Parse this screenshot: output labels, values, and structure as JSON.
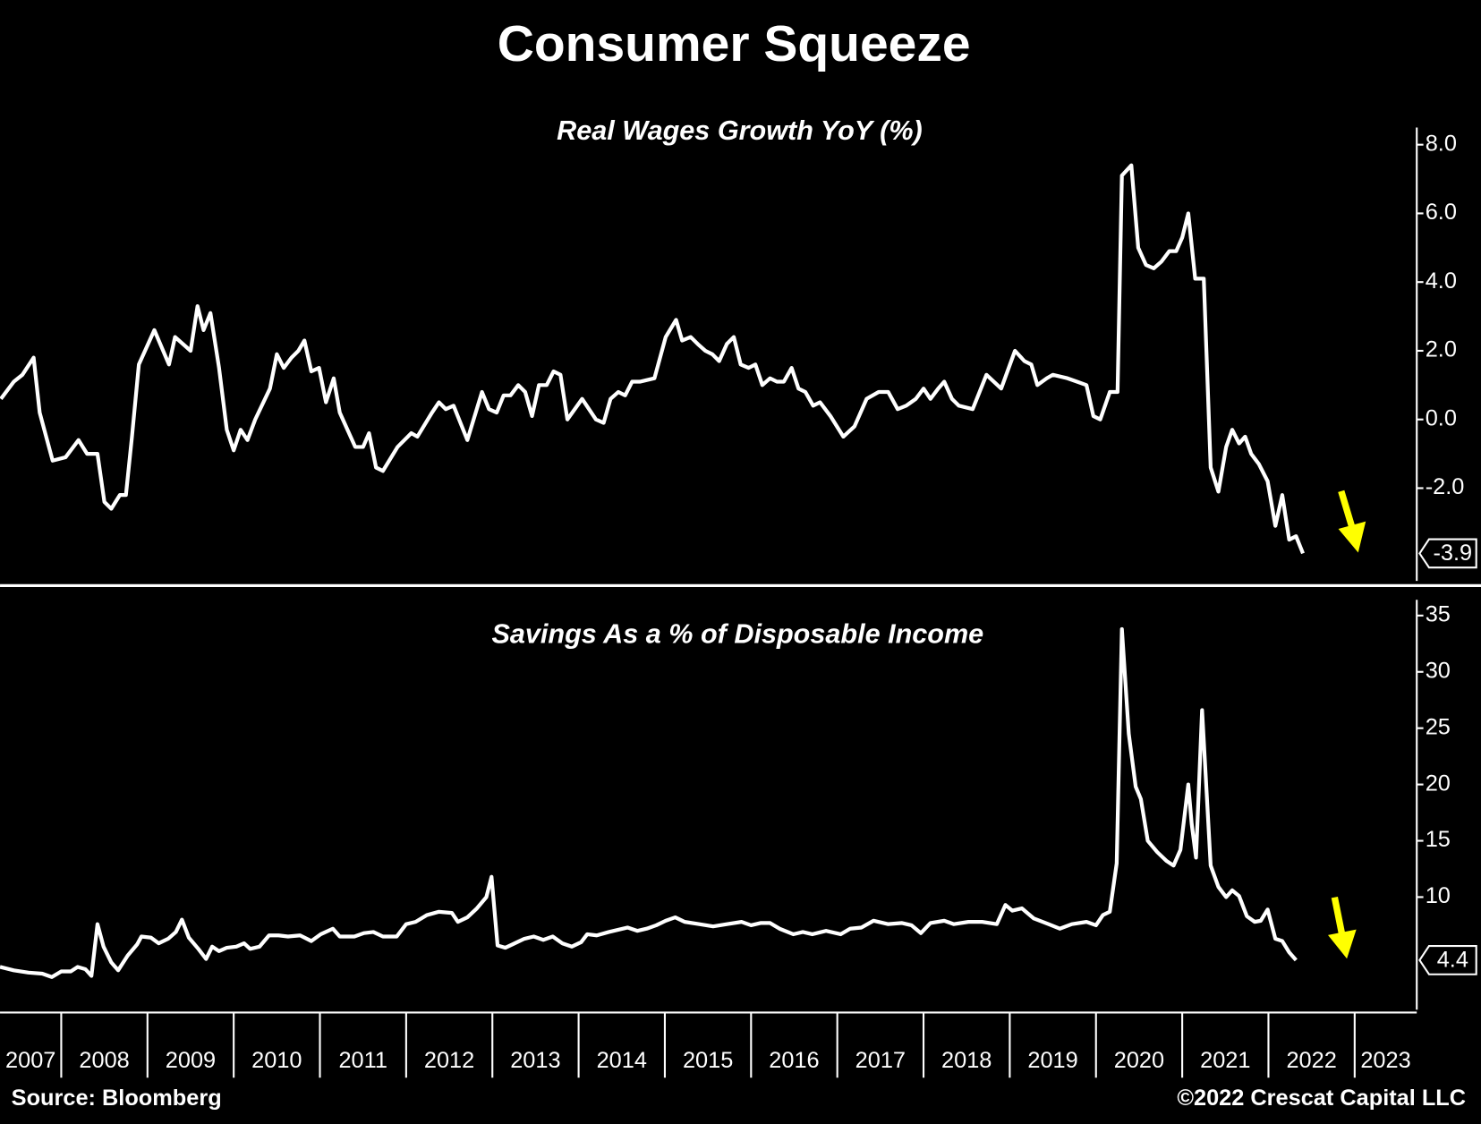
{
  "title": "Consumer Squeeze",
  "source": "Source: Bloomberg",
  "credit": "©2022 Crescat Capital LLC",
  "chart_data": [
    {
      "type": "line",
      "title": "Real Wages Growth YoY (%)",
      "x": [
        2007.3,
        2007.45,
        2007.55,
        2007.68,
        2007.75,
        2007.9,
        2008.05,
        2008.2,
        2008.3,
        2008.42,
        2008.5,
        2008.58,
        2008.68,
        2008.75,
        2008.82,
        2008.9,
        2009.08,
        2009.25,
        2009.32,
        2009.5,
        2009.58,
        2009.65,
        2009.73,
        2009.83,
        2009.92,
        2010.0,
        2010.08,
        2010.16,
        2010.25,
        2010.42,
        2010.5,
        2010.58,
        2010.67,
        2010.75,
        2010.82,
        2010.9,
        2010.99,
        2011.07,
        2011.16,
        2011.23,
        2011.32,
        2011.41,
        2011.5,
        2011.57,
        2011.65,
        2011.73,
        2011.9,
        2012.06,
        2012.13,
        2012.3,
        2012.38,
        2012.46,
        2012.55,
        2012.71,
        2012.88,
        2012.96,
        2013.05,
        2013.13,
        2013.21,
        2013.3,
        2013.38,
        2013.46,
        2013.54,
        2013.63,
        2013.71,
        2013.79,
        2013.87,
        2014.04,
        2014.2,
        2014.29,
        2014.37,
        2014.46,
        2014.54,
        2014.62,
        2014.71,
        2014.88,
        2015.01,
        2015.13,
        2015.2,
        2015.3,
        2015.38,
        2015.47,
        2015.55,
        2015.63,
        2015.72,
        2015.8,
        2015.88,
        2015.97,
        2016.05,
        2016.13,
        2016.22,
        2016.3,
        2016.38,
        2016.47,
        2016.55,
        2016.63,
        2016.72,
        2016.8,
        2016.92,
        2017.07,
        2017.2,
        2017.34,
        2017.48,
        2017.59,
        2017.7,
        2017.8,
        2017.91,
        2018.0,
        2018.08,
        2018.17,
        2018.24,
        2018.33,
        2018.41,
        2018.57,
        2018.73,
        2018.9,
        2019.06,
        2019.17,
        2019.25,
        2019.32,
        2019.43,
        2019.5,
        2019.67,
        2019.78,
        2019.89,
        2019.97,
        2020.05,
        2020.16,
        2020.25,
        2020.3,
        2020.41,
        2020.49,
        2020.58,
        2020.67,
        2020.76,
        2020.85,
        2020.93,
        2021.0,
        2021.07,
        2021.15,
        2021.25,
        2021.33,
        2021.42,
        2021.51,
        2021.58,
        2021.66,
        2021.73,
        2021.8,
        2021.89,
        2021.99,
        2022.08,
        2022.16,
        2022.24,
        2022.32,
        2022.4
      ],
      "series": [
        {
          "color": "#ffffff",
          "values": [
            0.6,
            1.1,
            1.3,
            1.8,
            0.2,
            -1.2,
            -1.1,
            -0.6,
            -1.0,
            -1.0,
            -2.4,
            -2.6,
            -2.2,
            -2.2,
            -0.5,
            1.6,
            2.6,
            1.6,
            2.4,
            2.0,
            3.3,
            2.6,
            3.1,
            1.5,
            -0.3,
            -0.9,
            -0.3,
            -0.6,
            0.0,
            0.9,
            1.9,
            1.5,
            1.8,
            2.0,
            2.3,
            1.4,
            1.5,
            0.5,
            1.2,
            0.2,
            -0.3,
            -0.8,
            -0.8,
            -0.4,
            -1.4,
            -1.5,
            -0.8,
            -0.4,
            -0.5,
            0.2,
            0.5,
            0.3,
            0.4,
            -0.6,
            0.8,
            0.3,
            0.2,
            0.7,
            0.7,
            1.0,
            0.8,
            0.1,
            1.0,
            1.0,
            1.4,
            1.3,
            0.0,
            0.6,
            0.0,
            -0.1,
            0.6,
            0.8,
            0.7,
            1.1,
            1.1,
            1.2,
            2.4,
            2.9,
            2.3,
            2.4,
            2.2,
            2.0,
            1.9,
            1.7,
            2.2,
            2.4,
            1.6,
            1.5,
            1.6,
            1.0,
            1.2,
            1.1,
            1.1,
            1.5,
            0.9,
            0.8,
            0.4,
            0.5,
            0.1,
            -0.5,
            -0.2,
            0.6,
            0.8,
            0.8,
            0.3,
            0.4,
            0.6,
            0.9,
            0.6,
            0.9,
            1.1,
            0.6,
            0.4,
            0.3,
            1.3,
            0.9,
            2.0,
            1.7,
            1.6,
            1.0,
            1.2,
            1.3,
            1.2,
            1.1,
            1.0,
            0.1,
            0.0,
            0.8,
            0.8,
            7.1,
            7.4,
            5.0,
            4.5,
            4.4,
            4.6,
            4.9,
            4.9,
            5.3,
            6.0,
            4.1,
            4.1,
            -1.4,
            -2.1,
            -0.8,
            -0.3,
            -0.7,
            -0.5,
            -1.0,
            -1.3,
            -1.8,
            -3.1,
            -2.2,
            -3.5,
            -3.4,
            -3.9
          ]
        }
      ],
      "xlim": [
        2007.29,
        2023.72
      ],
      "ylim": [
        -4.7,
        8.5
      ],
      "yticks": [
        {
          "value": 8,
          "label": "8.0"
        },
        {
          "value": 6,
          "label": "6.0"
        },
        {
          "value": 4,
          "label": "4.0"
        },
        {
          "value": 2,
          "label": "2.0"
        },
        {
          "value": 0,
          "label": "0.0"
        },
        {
          "value": -2,
          "label": "-2.0"
        }
      ]
    },
    {
      "type": "line",
      "title": "Savings As a % of Disposable Income",
      "x": [
        2007.29,
        2007.45,
        2007.62,
        2007.78,
        2007.89,
        2008.0,
        2008.11,
        2008.19,
        2008.28,
        2008.35,
        2008.42,
        2008.49,
        2008.58,
        2008.66,
        2008.77,
        2008.88,
        2008.93,
        2009.04,
        2009.13,
        2009.24,
        2009.33,
        2009.4,
        2009.48,
        2009.59,
        2009.68,
        2009.75,
        2009.83,
        2009.92,
        2010.03,
        2010.12,
        2010.19,
        2010.3,
        2010.41,
        2010.52,
        2010.63,
        2010.77,
        2010.9,
        2011.01,
        2011.15,
        2011.23,
        2011.4,
        2011.51,
        2011.62,
        2011.73,
        2011.89,
        2012.0,
        2012.11,
        2012.24,
        2012.38,
        2012.53,
        2012.6,
        2012.71,
        2012.82,
        2012.93,
        2012.99,
        2013.06,
        2013.15,
        2013.26,
        2013.37,
        2013.48,
        2013.59,
        2013.7,
        2013.81,
        2013.92,
        2014.03,
        2014.1,
        2014.21,
        2014.35,
        2014.46,
        2014.57,
        2014.68,
        2014.79,
        2014.9,
        2015.01,
        2015.12,
        2015.23,
        2015.4,
        2015.56,
        2015.72,
        2015.89,
        2016.0,
        2016.11,
        2016.22,
        2016.33,
        2016.49,
        2016.6,
        2016.71,
        2016.87,
        2017.04,
        2017.15,
        2017.28,
        2017.42,
        2017.59,
        2017.75,
        2017.86,
        2017.97,
        2018.08,
        2018.24,
        2018.35,
        2018.52,
        2018.68,
        2018.85,
        2018.95,
        2019.03,
        2019.14,
        2019.28,
        2019.45,
        2019.58,
        2019.72,
        2019.89,
        2020.0,
        2020.08,
        2020.16,
        2020.24,
        2020.3,
        2020.38,
        2020.46,
        2020.52,
        2020.6,
        2020.71,
        2020.82,
        2020.9,
        2020.98,
        2021.07,
        2021.11,
        2021.16,
        2021.23,
        2021.33,
        2021.42,
        2021.51,
        2021.58,
        2021.66,
        2021.75,
        2021.84,
        2021.91,
        2021.99,
        2022.08,
        2022.16,
        2022.24,
        2022.32
      ],
      "series": [
        {
          "color": "#ffffff",
          "values": [
            3.8,
            3.5,
            3.3,
            3.2,
            2.9,
            3.4,
            3.4,
            3.8,
            3.6,
            3.0,
            7.6,
            5.6,
            4.2,
            3.5,
            4.8,
            5.8,
            6.5,
            6.4,
            5.9,
            6.3,
            6.9,
            8.0,
            6.4,
            5.4,
            4.5,
            5.6,
            5.2,
            5.5,
            5.6,
            5.9,
            5.4,
            5.6,
            6.6,
            6.6,
            6.5,
            6.6,
            6.1,
            6.7,
            7.2,
            6.5,
            6.5,
            6.8,
            6.9,
            6.5,
            6.5,
            7.6,
            7.8,
            8.4,
            8.7,
            8.6,
            7.8,
            8.2,
            9.0,
            10.0,
            11.8,
            5.7,
            5.5,
            5.9,
            6.3,
            6.5,
            6.2,
            6.5,
            5.9,
            5.6,
            6.0,
            6.7,
            6.6,
            6.9,
            7.1,
            7.3,
            7.0,
            7.2,
            7.5,
            7.9,
            8.2,
            7.8,
            7.6,
            7.4,
            7.6,
            7.8,
            7.5,
            7.7,
            7.7,
            7.2,
            6.7,
            6.9,
            6.7,
            7.0,
            6.7,
            7.2,
            7.3,
            7.9,
            7.6,
            7.7,
            7.5,
            6.8,
            7.7,
            7.9,
            7.6,
            7.8,
            7.8,
            7.6,
            9.3,
            8.8,
            9.0,
            8.1,
            7.6,
            7.2,
            7.6,
            7.8,
            7.5,
            8.4,
            8.7,
            13.0,
            33.8,
            24.5,
            19.8,
            18.7,
            15.0,
            14.0,
            13.2,
            12.8,
            14.2,
            20.0,
            16.5,
            13.5,
            26.6,
            12.8,
            10.9,
            10.0,
            10.6,
            10.1,
            8.3,
            7.8,
            7.9,
            8.9,
            6.3,
            6.1,
            5.1,
            4.4
          ]
        }
      ],
      "xlim": [
        2007.29,
        2023.72
      ],
      "xticks": [
        {
          "value": 2007,
          "label": "2007"
        },
        {
          "value": 2008,
          "label": "2008"
        },
        {
          "value": 2009,
          "label": "2009"
        },
        {
          "value": 2010,
          "label": "2010"
        },
        {
          "value": 2011,
          "label": "2011"
        },
        {
          "value": 2012,
          "label": "2012"
        },
        {
          "value": 2013,
          "label": "2013"
        },
        {
          "value": 2014,
          "label": "2014"
        },
        {
          "value": 2015,
          "label": "2015"
        },
        {
          "value": 2016,
          "label": "2016"
        },
        {
          "value": 2017,
          "label": "2017"
        },
        {
          "value": 2018,
          "label": "2018"
        },
        {
          "value": 2019,
          "label": "2019"
        },
        {
          "value": 2020,
          "label": "2020"
        },
        {
          "value": 2021,
          "label": "2021"
        },
        {
          "value": 2022,
          "label": "2022"
        },
        {
          "value": 2023,
          "label": "2023"
        }
      ],
      "ylim": [
        0,
        36.4
      ],
      "yticks": [
        10,
        15,
        20,
        25,
        30,
        35
      ]
    }
  ]
}
